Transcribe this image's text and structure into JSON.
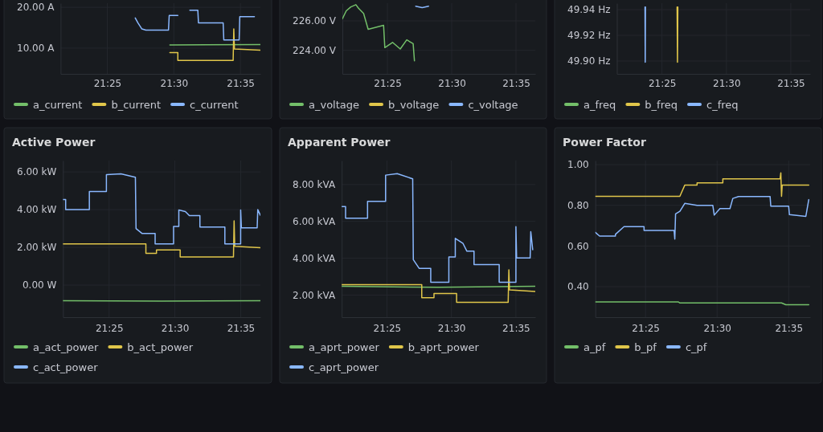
{
  "chart_data": [
    {
      "type": "line",
      "xlim": [
        21.3583,
        21.6083
      ],
      "xticks": [
        {
          "value": 21.4167,
          "label": "21:25"
        },
        {
          "value": 21.5,
          "label": "21:30"
        },
        {
          "value": 21.5833,
          "label": "21:35"
        }
      ],
      "ylim": [
        3.7,
        21
      ],
      "yticks": [
        {
          "value": 10,
          "label": "10.00 A"
        },
        {
          "value": 20,
          "label": "20.00 A"
        }
      ],
      "grid": true,
      "legend": "bottom",
      "series": [
        {
          "name": "a_current",
          "color": "#73bf69",
          "x": [
            21.495,
            21.6083
          ],
          "values": [
            10.8,
            10.9
          ]
        },
        {
          "name": "b_current",
          "color": "#e0c64a",
          "x": [
            21.495,
            21.505,
            21.505,
            21.5742,
            21.575,
            21.5758,
            21.6083
          ],
          "values": [
            8.9,
            8.9,
            7.0,
            7.0,
            14.7,
            9.8,
            9.5
          ]
        },
        {
          "name": "c_current",
          "color": "#8ab8ff",
          "x": [
            21.4517,
            21.455,
            21.46,
            21.465,
            21.4933,
            21.4942,
            21.505,
            21.5058,
            21.52,
            21.53,
            21.5308,
            21.5617,
            21.5625,
            21.5817,
            21.5825,
            21.6008
          ],
          "values": [
            17.4,
            16.2,
            14.7,
            14.4,
            14.4,
            18.0,
            18.0,
            null,
            19.3,
            19.3,
            16.2,
            16.2,
            12.0,
            12.0,
            17.7,
            17.7
          ]
        }
      ]
    },
    {
      "type": "line",
      "xlim": [
        21.3583,
        21.6083
      ],
      "xticks": [
        {
          "value": 21.4167,
          "label": "21:25"
        },
        {
          "value": 21.5,
          "label": "21:30"
        },
        {
          "value": 21.5833,
          "label": "21:35"
        }
      ],
      "ylim": [
        222.4,
        227.2
      ],
      "yticks": [
        {
          "value": 224,
          "label": "224.00 V"
        },
        {
          "value": 226,
          "label": "226.00 V"
        }
      ],
      "grid": true,
      "legend": "bottom",
      "series": [
        {
          "name": "a_voltage",
          "color": "#73bf69",
          "x": [
            21.3583,
            21.3633,
            21.3692,
            21.3758,
            21.3792,
            21.3858,
            21.3917,
            21.4117,
            21.4133,
            21.4233,
            21.4333,
            21.4417,
            21.45,
            21.4517
          ],
          "values": [
            226.14,
            226.68,
            226.95,
            227.1,
            226.86,
            226.5,
            225.43,
            225.7,
            224.18,
            224.54,
            224.09,
            224.71,
            224.45,
            223.29
          ]
        },
        {
          "name": "b_voltage",
          "color": "#e0c64a"
        },
        {
          "name": "c_voltage",
          "color": "#8ab8ff",
          "x": [
            21.4533,
            21.4617,
            21.47
          ],
          "values": [
            227.0,
            226.9,
            227.0
          ]
        }
      ]
    },
    {
      "type": "line",
      "xlim": [
        21.3583,
        21.6083
      ],
      "xticks": [
        {
          "value": 21.4167,
          "label": "21:25"
        },
        {
          "value": 21.5,
          "label": "21:30"
        },
        {
          "value": 21.5833,
          "label": "21:35"
        }
      ],
      "ylim": [
        49.89,
        49.945
      ],
      "yticks": [
        {
          "value": 49.9,
          "label": "49.90 Hz"
        },
        {
          "value": 49.92,
          "label": "49.92 Hz"
        },
        {
          "value": 49.94,
          "label": "49.94 Hz"
        }
      ],
      "grid": true,
      "legend": "bottom",
      "series": [
        {
          "name": "a_freq",
          "color": "#73bf69"
        },
        {
          "name": "b_freq",
          "color": "#e0c64a",
          "x": [
            21.4362,
            21.4367,
            21.4372
          ],
          "values": [
            49.942,
            49.899,
            49.942
          ]
        },
        {
          "name": "c_freq",
          "color": "#8ab8ff",
          "x": [
            21.3947,
            21.395,
            21.3953
          ],
          "values": [
            49.942,
            49.899,
            49.942
          ]
        }
      ]
    },
    {
      "type": "line",
      "title": "Active Power",
      "xlim": [
        21.3583,
        21.6083
      ],
      "xticks": [
        {
          "value": 21.4167,
          "label": "21:25"
        },
        {
          "value": 21.5,
          "label": "21:30"
        },
        {
          "value": 21.5833,
          "label": "21:35"
        }
      ],
      "ylim": [
        -1.7,
        6.6
      ],
      "yticks": [
        {
          "value": 0,
          "label": "0.00 W"
        },
        {
          "value": 2,
          "label": "2.00 kW"
        },
        {
          "value": 4,
          "label": "4.00 kW"
        },
        {
          "value": 6,
          "label": "6.00 kW"
        }
      ],
      "grid": true,
      "legend": "bottom",
      "series": [
        {
          "name": "a_act_power",
          "color": "#73bf69",
          "x": [
            21.3583,
            21.4833,
            21.6083
          ],
          "values": [
            -0.83,
            -0.85,
            -0.83
          ]
        },
        {
          "name": "b_act_power",
          "color": "#e0c64a",
          "x": [
            21.3583,
            21.4633,
            21.4633,
            21.4767,
            21.4767,
            21.5067,
            21.5067,
            21.5742,
            21.575,
            21.5758,
            21.6083
          ],
          "values": [
            2.18,
            2.18,
            1.68,
            1.68,
            1.86,
            1.86,
            1.49,
            1.49,
            3.41,
            2.06,
            1.98
          ]
        },
        {
          "name": "c_act_power",
          "color": "#8ab8ff",
          "x": [
            21.3583,
            21.3617,
            21.3617,
            21.3917,
            21.3917,
            21.4133,
            21.4133,
            21.4317,
            21.45,
            21.4508,
            21.4583,
            21.475,
            21.475,
            21.4983,
            21.4983,
            21.505,
            21.505,
            21.5133,
            21.5183,
            21.5317,
            21.5317,
            21.5633,
            21.5633,
            21.5833,
            21.5833,
            21.5842,
            21.6042,
            21.605,
            21.6083
          ],
          "values": [
            4.54,
            4.54,
            4.0,
            4.0,
            4.96,
            4.96,
            5.86,
            5.9,
            5.72,
            3.0,
            2.74,
            2.74,
            2.18,
            2.18,
            3.11,
            3.11,
            3.98,
            3.9,
            3.68,
            3.68,
            3.08,
            3.08,
            2.18,
            2.18,
            3.98,
            3.04,
            3.04,
            4.0,
            3.7
          ]
        }
      ]
    },
    {
      "type": "line",
      "title": "Apparent Power",
      "xlim": [
        21.3583,
        21.6083
      ],
      "xticks": [
        {
          "value": 21.4167,
          "label": "21:25"
        },
        {
          "value": 21.5,
          "label": "21:30"
        },
        {
          "value": 21.5833,
          "label": "21:35"
        }
      ],
      "ylim": [
        0.8,
        9.3
      ],
      "yticks": [
        {
          "value": 2,
          "label": "2.00 kVA"
        },
        {
          "value": 4,
          "label": "4.00 kVA"
        },
        {
          "value": 6,
          "label": "6.00 kVA"
        },
        {
          "value": 8,
          "label": "8.00 kVA"
        }
      ],
      "grid": true,
      "legend": "bottom",
      "series": [
        {
          "name": "a_aprt_power",
          "color": "#73bf69",
          "x": [
            21.3583,
            21.4833,
            21.6083
          ],
          "values": [
            2.48,
            2.42,
            2.48
          ]
        },
        {
          "name": "b_aprt_power",
          "color": "#e0c64a",
          "x": [
            21.3583,
            21.4617,
            21.4617,
            21.4775,
            21.4775,
            21.5067,
            21.5067,
            21.5733,
            21.5742,
            21.575,
            21.6083
          ],
          "values": [
            2.56,
            2.56,
            1.86,
            1.86,
            2.09,
            2.09,
            1.61,
            1.61,
            3.37,
            2.28,
            2.2
          ]
        },
        {
          "name": "c_aprt_power",
          "color": "#8ab8ff",
          "x": [
            21.3583,
            21.3633,
            21.3633,
            21.3917,
            21.3917,
            21.415,
            21.415,
            21.43,
            21.45,
            21.4508,
            21.4583,
            21.4733,
            21.4733,
            21.4967,
            21.4967,
            21.505,
            21.505,
            21.515,
            21.52,
            21.5292,
            21.5292,
            21.5617,
            21.5617,
            21.5833,
            21.5833,
            21.5842,
            21.6017,
            21.6025,
            21.605
          ],
          "values": [
            6.8,
            6.8,
            6.17,
            6.17,
            7.09,
            7.09,
            8.51,
            8.59,
            8.31,
            3.92,
            3.45,
            3.45,
            2.7,
            2.7,
            4.07,
            4.07,
            5.08,
            4.8,
            4.38,
            4.38,
            3.65,
            3.65,
            2.7,
            2.7,
            5.71,
            4.02,
            4.02,
            5.44,
            4.46
          ]
        }
      ]
    },
    {
      "type": "line",
      "title": "Power Factor",
      "xlim": [
        21.3583,
        21.6083
      ],
      "xticks": [
        {
          "value": 21.4167,
          "label": "21:25"
        },
        {
          "value": 21.5,
          "label": "21:30"
        },
        {
          "value": 21.5833,
          "label": "21:35"
        }
      ],
      "ylim": [
        0.25,
        1.02
      ],
      "yticks": [
        {
          "value": 0.4,
          "label": "0.40"
        },
        {
          "value": 0.6,
          "label": "0.60"
        },
        {
          "value": 0.8,
          "label": "0.80"
        },
        {
          "value": 1,
          "label": "1.00"
        }
      ],
      "grid": true,
      "legend": "bottom",
      "series": [
        {
          "name": "a_pf",
          "color": "#73bf69",
          "x": [
            21.3583,
            21.455,
            21.4567,
            21.575,
            21.58,
            21.6067
          ],
          "values": [
            0.325,
            0.325,
            0.32,
            0.32,
            0.311,
            0.311
          ]
        },
        {
          "name": "b_pf",
          "color": "#e0c64a",
          "x": [
            21.3583,
            21.4567,
            21.4583,
            21.4625,
            21.4767,
            21.4767,
            21.5067,
            21.5067,
            21.5733,
            21.5742,
            21.575,
            21.5758,
            21.6067
          ],
          "values": [
            0.844,
            0.844,
            0.86,
            0.9,
            0.9,
            0.91,
            0.91,
            0.93,
            0.93,
            0.96,
            0.844,
            0.9,
            0.9
          ]
        },
        {
          "name": "c_pf",
          "color": "#8ab8ff",
          "x": [
            21.3583,
            21.3633,
            21.3817,
            21.3817,
            21.3917,
            21.415,
            21.415,
            21.45,
            21.4508,
            21.4517,
            21.4567,
            21.4625,
            21.4767,
            21.495,
            21.4967,
            21.5033,
            21.515,
            21.5183,
            21.525,
            21.5617,
            21.5625,
            21.5833,
            21.5842,
            21.6033,
            21.6067
          ],
          "values": [
            0.667,
            0.649,
            0.649,
            0.657,
            0.695,
            0.695,
            0.676,
            0.676,
            0.634,
            0.758,
            0.771,
            0.81,
            0.8,
            0.8,
            0.752,
            0.784,
            0.784,
            0.834,
            0.843,
            0.843,
            0.796,
            0.796,
            0.754,
            0.746,
            0.828
          ]
        }
      ]
    }
  ]
}
